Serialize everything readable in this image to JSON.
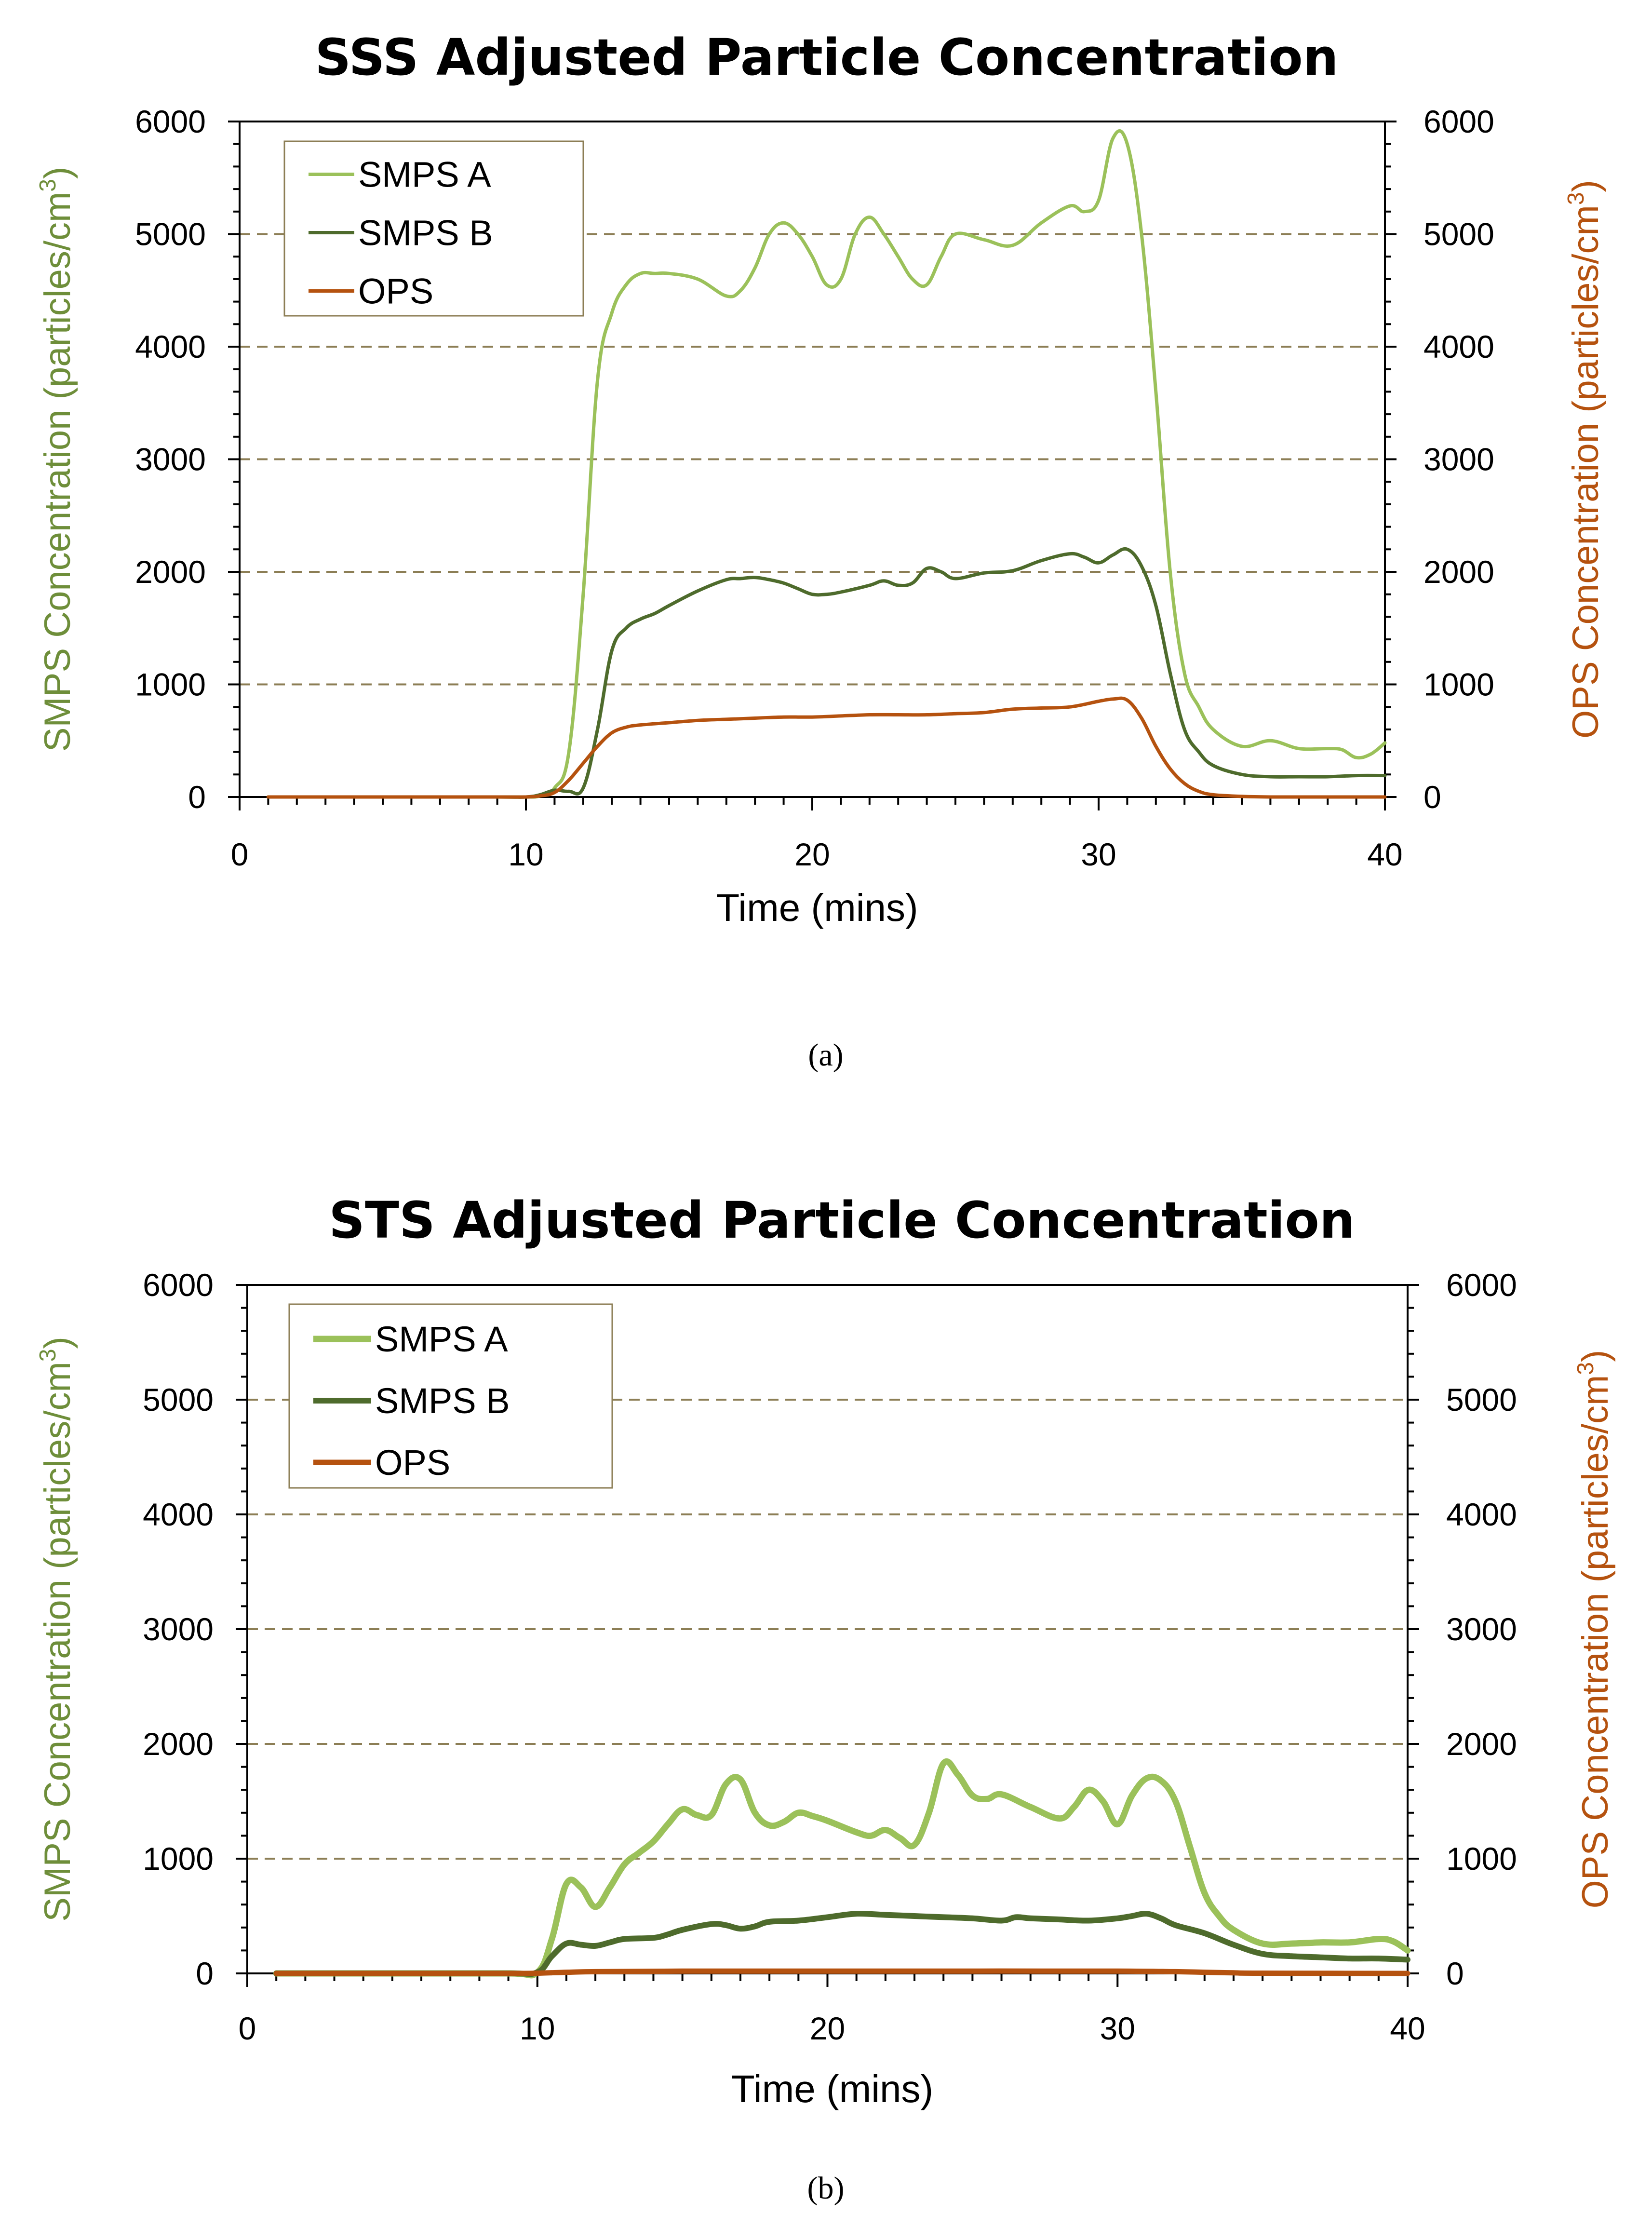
{
  "colors": {
    "smps_a": "#9BC15A",
    "smps_b": "#4E6B2C",
    "ops": "#B5520F",
    "left_axis_label": "#6E8E3A",
    "right_axis_label": "#B5520F",
    "grid": "#8C7E55"
  },
  "chart_data": [
    {
      "type": "line",
      "title": "SSS Adjusted Particle Concentration",
      "caption": "(a)",
      "xlabel": "Time (mins)",
      "ylabel_left": "SMPS Concentration  (particles/cm",
      "ylabel_right": "OPS Concentration  (particles/cm",
      "ylabel_superscript": "3",
      "ylabel_close": ")",
      "xlim": [
        0,
        40
      ],
      "ylim_left": [
        0,
        6000
      ],
      "ylim_right": [
        0,
        6000
      ],
      "xticks": [
        "0",
        "10",
        "20",
        "30",
        "40"
      ],
      "yticks": [
        "0",
        "1000",
        "2000",
        "3000",
        "4000",
        "5000",
        "6000"
      ],
      "grid": "horizontal dashed",
      "legend_position": "top-left",
      "series": [
        {
          "name": "SMPS A",
          "color_key": "smps_a",
          "x": [
            1,
            5,
            9,
            10,
            10.5,
            11,
            11.5,
            12,
            12.5,
            13,
            13.5,
            14,
            14.5,
            15,
            16,
            17,
            17.5,
            18,
            18.5,
            19,
            19.5,
            20,
            20.5,
            21,
            21.5,
            22,
            22.5,
            23,
            23.5,
            24,
            24.5,
            25,
            26,
            27,
            28,
            29,
            29.5,
            30,
            30.5,
            31,
            31.5,
            32,
            32.5,
            33,
            33.5,
            34,
            35,
            36,
            37,
            38,
            38.5,
            39,
            39.5,
            40
          ],
          "values": [
            0,
            0,
            0,
            0,
            10,
            80,
            400,
            1800,
            3700,
            4300,
            4550,
            4650,
            4650,
            4650,
            4600,
            4450,
            4500,
            4700,
            5000,
            5100,
            5000,
            4800,
            4550,
            4600,
            5000,
            5150,
            5000,
            4800,
            4600,
            4550,
            4800,
            5000,
            4950,
            4900,
            5100,
            5250,
            5200,
            5300,
            5850,
            5800,
            5000,
            3600,
            2000,
            1100,
            800,
            600,
            450,
            500,
            430,
            430,
            420,
            350,
            380,
            480
          ]
        },
        {
          "name": "SMPS B",
          "color_key": "smps_b",
          "x": [
            1,
            5,
            9,
            10,
            10.5,
            11,
            11.5,
            12,
            12.5,
            13,
            13.5,
            14,
            14.5,
            15,
            16,
            17,
            17.5,
            18,
            18.5,
            19,
            19.5,
            20,
            20.5,
            21,
            22,
            22.5,
            23,
            23.5,
            24,
            24.5,
            25,
            26,
            27,
            28,
            29,
            29.5,
            30,
            30.5,
            31,
            31.5,
            32,
            32.5,
            33,
            33.5,
            34,
            35,
            36,
            37,
            38,
            39,
            40
          ],
          "values": [
            0,
            0,
            0,
            0,
            20,
            60,
            50,
            80,
            600,
            1300,
            1500,
            1580,
            1630,
            1700,
            1830,
            1930,
            1940,
            1950,
            1930,
            1900,
            1850,
            1800,
            1800,
            1820,
            1880,
            1920,
            1880,
            1900,
            2030,
            2000,
            1940,
            1990,
            2010,
            2100,
            2160,
            2130,
            2080,
            2150,
            2200,
            2050,
            1700,
            1100,
            600,
            400,
            280,
            200,
            180,
            180,
            180,
            190,
            190
          ]
        },
        {
          "name": "OPS",
          "color_key": "ops",
          "x": [
            1,
            5,
            9,
            10,
            10.5,
            11,
            11.5,
            12,
            12.5,
            13,
            13.5,
            14,
            15,
            16,
            17,
            18,
            19,
            20,
            21,
            22,
            23,
            24,
            25,
            26,
            27,
            28,
            29,
            30,
            30.5,
            31,
            31.5,
            32,
            32.5,
            33,
            33.5,
            34,
            35,
            36,
            38,
            40
          ],
          "values": [
            0,
            0,
            0,
            0,
            10,
            40,
            150,
            300,
            450,
            570,
            620,
            640,
            660,
            680,
            690,
            700,
            710,
            710,
            720,
            730,
            730,
            730,
            740,
            750,
            780,
            790,
            800,
            850,
            870,
            860,
            700,
            450,
            250,
            120,
            50,
            20,
            5,
            0,
            0,
            0
          ]
        }
      ]
    },
    {
      "type": "line",
      "title": "STS Adjusted Particle Concentration",
      "caption": "(b)",
      "xlabel": "Time (mins)",
      "ylabel_left": "SMPS  Concentration (particles/cm",
      "ylabel_right": "OPS Concentration  (particles/cm",
      "ylabel_superscript": "3",
      "ylabel_close": ")",
      "xlim": [
        0,
        40
      ],
      "ylim_left": [
        0,
        6000
      ],
      "ylim_right": [
        0,
        6000
      ],
      "xticks": [
        "0",
        "10",
        "20",
        "30",
        "40"
      ],
      "yticks": [
        "0",
        "1000",
        "2000",
        "3000",
        "4000",
        "5000",
        "6000"
      ],
      "grid": "horizontal dashed",
      "legend_position": "top-left",
      "series": [
        {
          "name": "SMPS A",
          "color_key": "smps_a",
          "x": [
            1,
            5,
            9,
            10,
            10.5,
            11,
            11.5,
            12,
            12.5,
            13,
            13.5,
            14,
            14.5,
            15,
            15.5,
            16,
            16.5,
            17,
            17.5,
            18,
            18.5,
            19,
            19.5,
            20,
            21,
            21.5,
            22,
            22.5,
            23,
            23.5,
            24,
            24.5,
            25,
            25.5,
            26,
            27,
            28,
            28.5,
            29,
            29.5,
            30,
            30.5,
            31,
            31.5,
            32,
            32.5,
            33,
            33.5,
            34,
            35,
            36,
            37,
            38,
            39,
            39.5,
            40
          ],
          "values": [
            0,
            0,
            0,
            10,
            300,
            780,
            750,
            580,
            750,
            950,
            1050,
            1150,
            1300,
            1430,
            1380,
            1380,
            1650,
            1690,
            1400,
            1290,
            1320,
            1400,
            1370,
            1330,
            1230,
            1200,
            1250,
            1180,
            1120,
            1400,
            1830,
            1730,
            1550,
            1520,
            1560,
            1450,
            1350,
            1450,
            1600,
            1500,
            1300,
            1550,
            1700,
            1680,
            1500,
            1100,
            700,
            500,
            380,
            260,
            260,
            270,
            270,
            300,
            280,
            200
          ]
        },
        {
          "name": "SMPS B",
          "color_key": "smps_b",
          "x": [
            1,
            5,
            9,
            10,
            10.5,
            11,
            11.5,
            12,
            12.5,
            13,
            14,
            14.5,
            15,
            16,
            16.5,
            17,
            17.5,
            18,
            19,
            20,
            21,
            22,
            23,
            24,
            25,
            26,
            26.5,
            27,
            28,
            29,
            30,
            30.5,
            31,
            31.5,
            32,
            33,
            34,
            35,
            36,
            37,
            38,
            39,
            40
          ],
          "values": [
            0,
            0,
            0,
            10,
            150,
            260,
            250,
            240,
            270,
            300,
            310,
            340,
            380,
            430,
            420,
            390,
            410,
            450,
            460,
            490,
            520,
            510,
            500,
            490,
            480,
            460,
            490,
            480,
            470,
            460,
            480,
            500,
            520,
            480,
            420,
            350,
            250,
            170,
            150,
            140,
            130,
            130,
            120
          ]
        },
        {
          "name": "OPS",
          "color_key": "ops",
          "x": [
            1,
            5,
            9,
            10,
            11,
            12,
            15,
            20,
            25,
            30,
            32,
            33,
            34,
            35,
            40
          ],
          "values": [
            0,
            0,
            0,
            2,
            10,
            15,
            20,
            20,
            20,
            20,
            15,
            10,
            5,
            2,
            0
          ]
        }
      ]
    }
  ]
}
